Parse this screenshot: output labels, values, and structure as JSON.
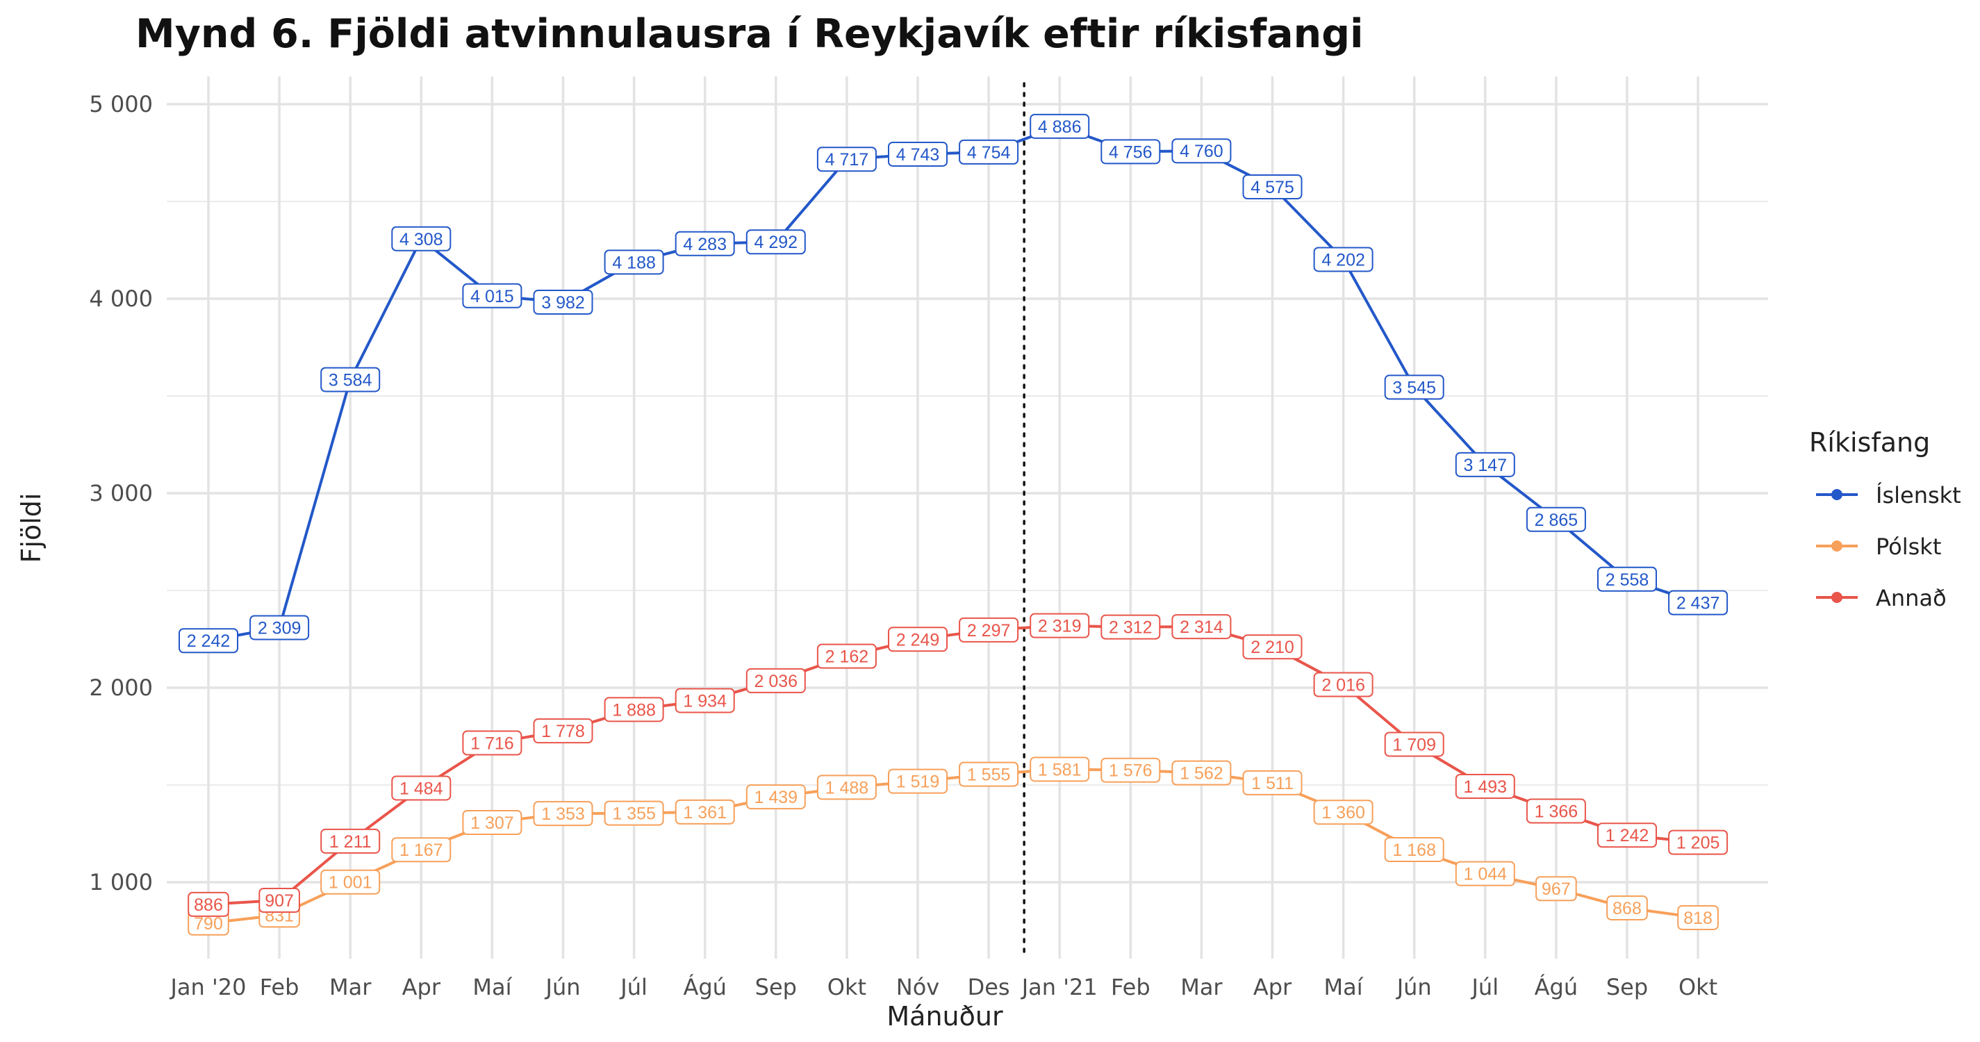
{
  "chart_data": {
    "type": "line",
    "title": "Mynd 6. Fjöldi atvinnulausra í Reykjavík eftir ríkisfangi",
    "xlabel": "Mánuður",
    "ylabel": "Fjöldi",
    "categories": [
      "Jan '20",
      "Feb",
      "Mar",
      "Apr",
      "Maí",
      "Jún",
      "Júl",
      "Ágú",
      "Sep",
      "Okt",
      "Nóv",
      "Des",
      "Jan '21",
      "Feb",
      "Mar",
      "Apr",
      "Maí",
      "Jún",
      "Júl",
      "Ágú",
      "Sep",
      "Okt"
    ],
    "y_ticks": [
      1000,
      2000,
      3000,
      4000,
      5000
    ],
    "y_tick_labels": [
      "1 000",
      "2 000",
      "3 000",
      "4 000",
      "5 000"
    ],
    "ylim": [
      600,
      5150
    ],
    "grid": true,
    "vline_after_index": 11.5,
    "legend": {
      "title": "Ríkisfang",
      "position": "right"
    },
    "series": [
      {
        "name": "Íslenskt",
        "color": "#2358c9",
        "values": [
          2242,
          2309,
          3584,
          4308,
          4015,
          3982,
          4188,
          4283,
          4292,
          4717,
          4743,
          4754,
          4886,
          4756,
          4760,
          4575,
          4202,
          3545,
          3147,
          2865,
          2558,
          2437
        ],
        "labels": [
          "2 242",
          "2 309",
          "3 584",
          "4 308",
          "4 015",
          "3 982",
          "4 188",
          "4 283",
          "4 292",
          "4 717",
          "4 743",
          "4 754",
          "4 886",
          "4 756",
          "4 760",
          "4 575",
          "4 202",
          "3 545",
          "3 147",
          "2 865",
          "2 558",
          "2 437"
        ]
      },
      {
        "name": "Pólskt",
        "color": "#f7a05a",
        "values": [
          790,
          831,
          1001,
          1167,
          1307,
          1353,
          1355,
          1361,
          1439,
          1488,
          1519,
          1555,
          1581,
          1576,
          1562,
          1511,
          1360,
          1168,
          1044,
          967,
          868,
          818
        ],
        "labels": [
          "790",
          "831",
          "1 001",
          "1 167",
          "1 307",
          "1 353",
          "1 355",
          "1 361",
          "1 439",
          "1 488",
          "1 519",
          "1 555",
          "1 581",
          "1 576",
          "1 562",
          "1 511",
          "1 360",
          "1 168",
          "1 044",
          "967",
          "868",
          "818"
        ]
      },
      {
        "name": "Annað",
        "color": "#e9554a",
        "values": [
          886,
          907,
          1211,
          1484,
          1716,
          1778,
          1888,
          1934,
          2036,
          2162,
          2249,
          2297,
          2319,
          2312,
          2314,
          2210,
          2016,
          1709,
          1493,
          1366,
          1242,
          1205
        ],
        "labels": [
          "886",
          "907",
          "1 211",
          "1 484",
          "1 716",
          "1 778",
          "1 888",
          "1 934",
          "2 036",
          "2 162",
          "2 249",
          "2 297",
          "2 319",
          "2 312",
          "2 314",
          "2 210",
          "2 016",
          "1 709",
          "1 493",
          "1 366",
          "1 242",
          "1 205"
        ]
      }
    ]
  }
}
